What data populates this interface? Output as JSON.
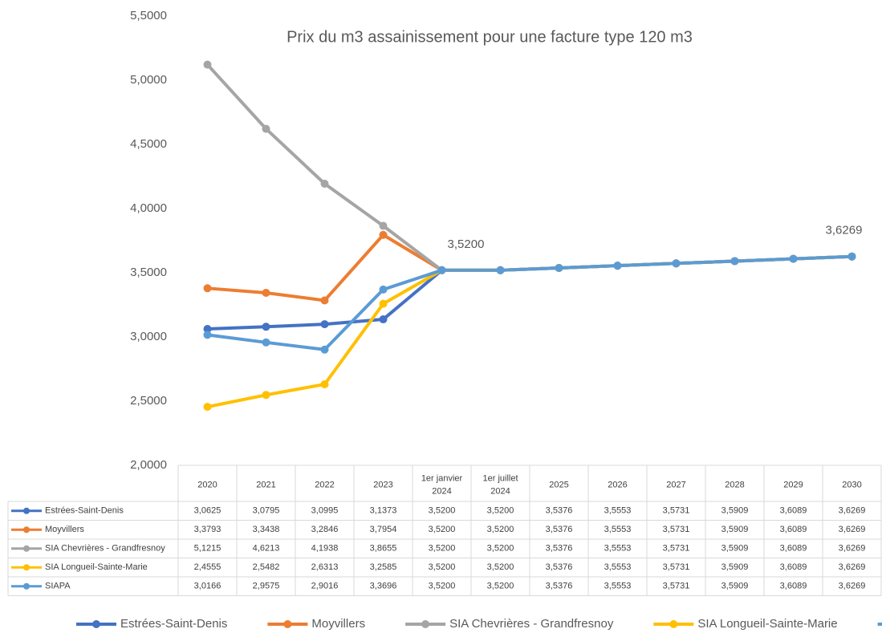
{
  "chart_data": {
    "type": "line",
    "title": "Prix du m3 assainissement pour une facture type 120 m3",
    "categories": [
      "2020",
      "2021",
      "2022",
      "2023",
      "1er janvier 2024",
      "1er juillet 2024",
      "2025",
      "2026",
      "2027",
      "2028",
      "2029",
      "2030"
    ],
    "ylim": [
      2,
      5.5
    ],
    "yticks": [
      {
        "value": 2,
        "label": "2,0000"
      },
      {
        "value": 2.5,
        "label": "2,5000"
      },
      {
        "value": 3,
        "label": "3,0000"
      },
      {
        "value": 3.5,
        "label": "3,5000"
      },
      {
        "value": 4,
        "label": "4,0000"
      },
      {
        "value": 4.5,
        "label": "4,5000"
      },
      {
        "value": 5,
        "label": "5,0000"
      },
      {
        "value": 5.5,
        "label": "5,5000"
      }
    ],
    "grid": false,
    "legend": "bottom",
    "series": [
      {
        "name": "Estrées-Saint-Denis",
        "color": "#4472c4",
        "values": [
          3.0625,
          3.0795,
          3.0995,
          3.1373,
          3.52,
          3.52,
          3.5376,
          3.5553,
          3.5731,
          3.5909,
          3.6089,
          3.6269
        ],
        "value_labels": [
          "3,0625",
          "3,0795",
          "3,0995",
          "3,1373",
          "3,5200",
          "3,5200",
          "3,5376",
          "3,5553",
          "3,5731",
          "3,5909",
          "3,6089",
          "3,6269"
        ]
      },
      {
        "name": "Moyvillers",
        "color": "#ed7d31",
        "values": [
          3.3793,
          3.3438,
          3.2846,
          3.7954,
          3.52,
          3.52,
          3.5376,
          3.5553,
          3.5731,
          3.5909,
          3.6089,
          3.6269
        ],
        "value_labels": [
          "3,3793",
          "3,3438",
          "3,2846",
          "3,7954",
          "3,5200",
          "3,5200",
          "3,5376",
          "3,5553",
          "3,5731",
          "3,5909",
          "3,6089",
          "3,6269"
        ]
      },
      {
        "name": "SIA Chevrières - Grandfresnoy",
        "color": "#a5a5a5",
        "values": [
          5.1215,
          4.6213,
          4.1938,
          3.8655,
          3.52,
          3.52,
          3.5376,
          3.5553,
          3.5731,
          3.5909,
          3.6089,
          3.6269
        ],
        "value_labels": [
          "5,1215",
          "4,6213",
          "4,1938",
          "3,8655",
          "3,5200",
          "3,5200",
          "3,5376",
          "3,5553",
          "3,5731",
          "3,5909",
          "3,6089",
          "3,6269"
        ]
      },
      {
        "name": "SIA Longueil-Sainte-Marie",
        "color": "#ffc000",
        "values": [
          2.4555,
          2.5482,
          2.6313,
          3.2585,
          3.52,
          3.52,
          3.5376,
          3.5553,
          3.5731,
          3.5909,
          3.6089,
          3.6269
        ],
        "value_labels": [
          "2,4555",
          "2,5482",
          "2,6313",
          "3,2585",
          "3,5200",
          "3,5200",
          "3,5376",
          "3,5553",
          "3,5731",
          "3,5909",
          "3,6089",
          "3,6269"
        ]
      },
      {
        "name": "SIAPA",
        "color": "#5b9bd5",
        "values": [
          3.0166,
          2.9575,
          2.9016,
          3.3696,
          3.52,
          3.52,
          3.5376,
          3.5553,
          3.5731,
          3.5909,
          3.6089,
          3.6269
        ],
        "value_labels": [
          "3,0166",
          "2,9575",
          "2,9016",
          "3,3696",
          "3,5200",
          "3,5200",
          "3,5376",
          "3,5553",
          "3,5731",
          "3,5909",
          "3,6089",
          "3,6269"
        ]
      }
    ]
  }
}
